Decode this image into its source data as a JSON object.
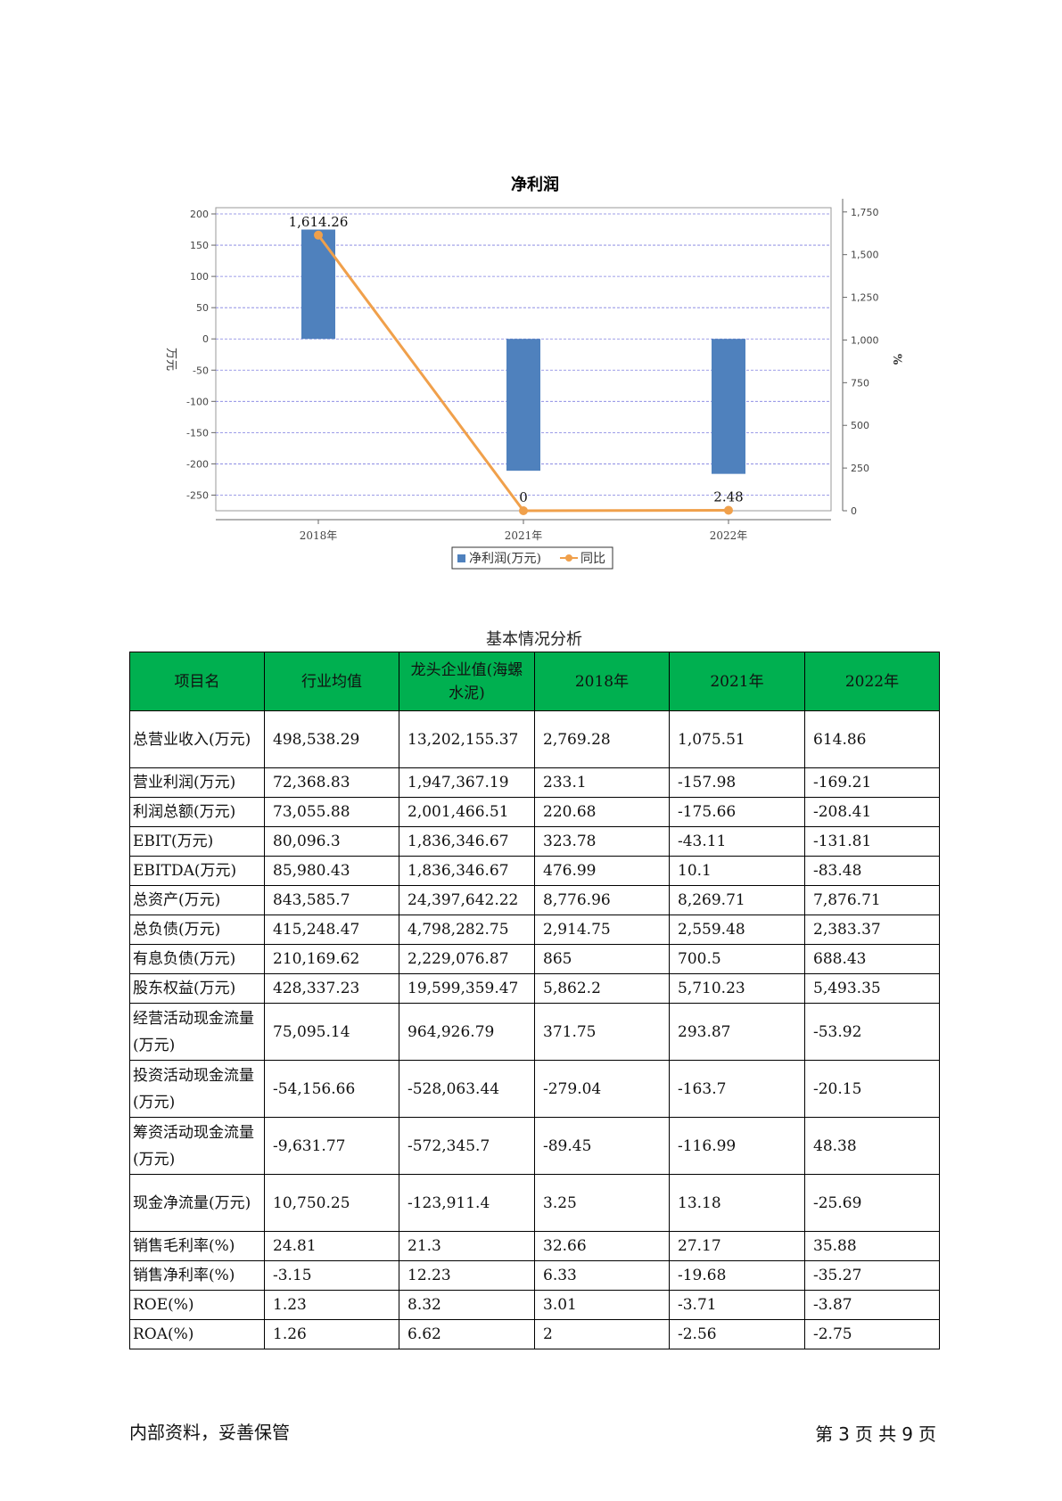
{
  "chart_data": {
    "type": "bar",
    "title": "净利润",
    "categories": [
      "2018年",
      "2021年",
      "2022年"
    ],
    "ylabel_left": "万元",
    "ylabel_right": "%",
    "yticks_left": [
      200,
      150,
      100,
      50,
      0,
      -50,
      -100,
      -150,
      -200,
      -250
    ],
    "yticks_right": [
      "1,750",
      "1,500",
      "1,250",
      "1,000",
      "750",
      "500",
      "250",
      "0"
    ],
    "ylim_left": [
      -275,
      210
    ],
    "ylim_right": [
      0,
      1775
    ],
    "grid": true,
    "legend_position": "bottom",
    "series": [
      {
        "name": "净利润(万元)",
        "type": "bar",
        "axis": "left",
        "color": "#4f81bd",
        "values": [
          175,
          -211,
          -216
        ]
      },
      {
        "name": "同比",
        "type": "line",
        "axis": "right",
        "color": "#f0a04b",
        "values": [
          1614.26,
          0,
          2.48
        ],
        "labels": [
          "1,614.26",
          "0",
          "2.48"
        ]
      }
    ]
  },
  "table": {
    "caption": "基本情况分析",
    "headers": [
      "项目名",
      "行业均值",
      "龙头企业值(海螺水泥)",
      "2018年",
      "2021年",
      "2022年"
    ],
    "rows": [
      [
        "总营业收入(万元)",
        "498,538.29",
        "13,202,155.37",
        "2,769.28",
        "1,075.51",
        "614.86"
      ],
      [
        "营业利润(万元)",
        "72,368.83",
        "1,947,367.19",
        "233.1",
        "-157.98",
        "-169.21"
      ],
      [
        "利润总额(万元)",
        "73,055.88",
        "2,001,466.51",
        "220.68",
        "-175.66",
        "-208.41"
      ],
      [
        "EBIT(万元)",
        "80,096.3",
        "1,836,346.67",
        "323.78",
        "-43.11",
        "-131.81"
      ],
      [
        "EBITDA(万元)",
        "85,980.43",
        "1,836,346.67",
        "476.99",
        "10.1",
        "-83.48"
      ],
      [
        "总资产(万元)",
        "843,585.7",
        "24,397,642.22",
        "8,776.96",
        "8,269.71",
        "7,876.71"
      ],
      [
        "总负债(万元)",
        "415,248.47",
        "4,798,282.75",
        "2,914.75",
        "2,559.48",
        "2,383.37"
      ],
      [
        "有息负债(万元)",
        "210,169.62",
        "2,229,076.87",
        "865",
        "700.5",
        "688.43"
      ],
      [
        "股东权益(万元)",
        "428,337.23",
        "19,599,359.47",
        "5,862.2",
        "5,710.23",
        "5,493.35"
      ],
      [
        "经营活动现金流量(万元)",
        "75,095.14",
        "964,926.79",
        "371.75",
        "293.87",
        "-53.92"
      ],
      [
        "投资活动现金流量(万元)",
        "-54,156.66",
        "-528,063.44",
        "-279.04",
        "-163.7",
        "-20.15"
      ],
      [
        "筹资活动现金流量(万元)",
        "-9,631.77",
        "-572,345.7",
        "-89.45",
        "-116.99",
        "48.38"
      ],
      [
        "现金净流量(万元)",
        "10,750.25",
        "-123,911.4",
        "3.25",
        "13.18",
        "-25.69"
      ],
      [
        "销售毛利率(%)",
        "24.81",
        "21.3",
        "32.66",
        "27.17",
        "35.88"
      ],
      [
        "销售净利率(%)",
        "-3.15",
        "12.23",
        "6.33",
        "-19.68",
        "-35.27"
      ],
      [
        "ROE(%)",
        "1.23",
        "8.32",
        "3.01",
        "-3.71",
        "-3.87"
      ],
      [
        "ROA(%)",
        "1.26",
        "6.62",
        "2",
        "-2.56",
        "-2.75"
      ]
    ]
  },
  "footer": {
    "left": "内部资料，妥善保管",
    "page_prefix": "第",
    "page_current": "3",
    "page_mid": "页 共",
    "page_total": "9",
    "page_suffix": "页"
  }
}
